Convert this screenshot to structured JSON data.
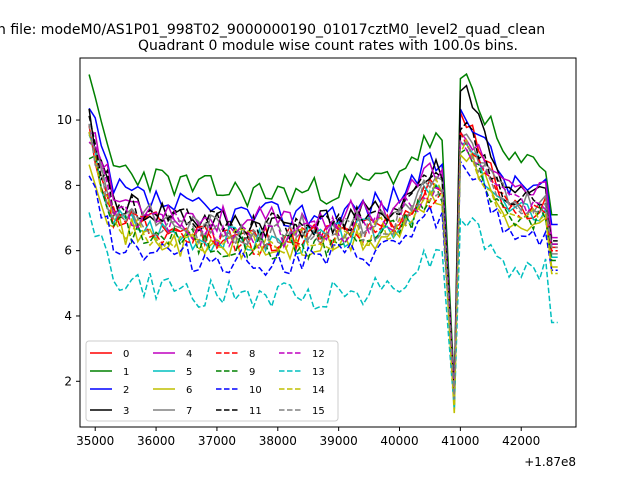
{
  "chart_data": {
    "type": "line",
    "suptitle": "n file: modeM0/AS1P01_998T02_9000000190_01017cztM0_level2_quad_clean",
    "title": "Quadrant 0 module wise count rates with 100.0s bins.",
    "xlabel": "",
    "ylabel": "",
    "x_offset_label": "+1.87e8",
    "xlim": [
      34750,
      42900
    ],
    "ylim": [
      0.6,
      11.9
    ],
    "x_ticks": [
      35000,
      36000,
      37000,
      38000,
      39000,
      40000,
      41000,
      42000
    ],
    "x_tick_labels": [
      "35000",
      "36000",
      "37000",
      "38000",
      "39000",
      "40000",
      "41000",
      "42000"
    ],
    "y_ticks": [
      2,
      4,
      6,
      8,
      10
    ],
    "y_tick_labels": [
      "2",
      "4",
      "6",
      "8",
      "10"
    ],
    "x_start": 34900,
    "x_step": 100,
    "legend": {
      "placement": "lower-left",
      "columns": 4
    },
    "series": [
      {
        "name": "0",
        "color": "#ff0000",
        "dash": "solid",
        "base": 6.7,
        "dip": 1.5,
        "peak": 10.1,
        "end": 6.1,
        "seed": 11
      },
      {
        "name": "1",
        "color": "#008000",
        "dash": "solid",
        "base": 8.1,
        "dip": 1.7,
        "peak": 11.3,
        "end": 7.1,
        "seed": 23
      },
      {
        "name": "2",
        "color": "#0000ff",
        "dash": "solid",
        "base": 7.4,
        "dip": 1.4,
        "peak": 10.3,
        "end": 6.8,
        "seed": 37
      },
      {
        "name": "3",
        "color": "#000000",
        "dash": "solid",
        "base": 7.1,
        "dip": 1.6,
        "peak": 11.0,
        "end": 6.2,
        "seed": 41
      },
      {
        "name": "4",
        "color": "#bf00bf",
        "dash": "solid",
        "base": 7.2,
        "dip": 1.5,
        "peak": 9.6,
        "end": 6.4,
        "seed": 53
      },
      {
        "name": "5",
        "color": "#00bfbf",
        "dash": "solid",
        "base": 6.6,
        "dip": 1.3,
        "peak": 9.2,
        "end": 5.8,
        "seed": 67
      },
      {
        "name": "6",
        "color": "#bfbf00",
        "dash": "solid",
        "base": 6.3,
        "dip": 1.1,
        "peak": 9.0,
        "end": 5.5,
        "seed": 71
      },
      {
        "name": "7",
        "color": "#808080",
        "dash": "solid",
        "base": 6.9,
        "dip": 1.4,
        "peak": 9.4,
        "end": 5.9,
        "seed": 83
      },
      {
        "name": "8",
        "color": "#ff0000",
        "dash": "dashed",
        "base": 6.6,
        "dip": 1.5,
        "peak": 9.5,
        "end": 6.0,
        "seed": 97
      },
      {
        "name": "9",
        "color": "#008000",
        "dash": "dashed",
        "base": 6.4,
        "dip": 1.3,
        "peak": 9.0,
        "end": 5.7,
        "seed": 101
      },
      {
        "name": "10",
        "color": "#0000ff",
        "dash": "dashed",
        "base": 5.9,
        "dip": 1.4,
        "peak": 8.6,
        "end": 5.4,
        "seed": 113
      },
      {
        "name": "11",
        "color": "#000000",
        "dash": "dashed",
        "base": 7.0,
        "dip": 1.6,
        "peak": 9.8,
        "end": 6.3,
        "seed": 127
      },
      {
        "name": "12",
        "color": "#bf00bf",
        "dash": "dashed",
        "base": 6.8,
        "dip": 1.5,
        "peak": 9.3,
        "end": 6.2,
        "seed": 131
      },
      {
        "name": "13",
        "color": "#00bfbf",
        "dash": "dashed",
        "base": 4.8,
        "dip": 1.2,
        "peak": 7.0,
        "end": 3.8,
        "seed": 149
      },
      {
        "name": "14",
        "color": "#bfbf00",
        "dash": "dashed",
        "base": 6.5,
        "dip": 1.0,
        "peak": 9.1,
        "end": 5.3,
        "seed": 151
      },
      {
        "name": "15",
        "color": "#808080",
        "dash": "dashed",
        "base": 6.7,
        "dip": 1.4,
        "peak": 9.3,
        "end": 6.1,
        "seed": 163
      }
    ]
  }
}
